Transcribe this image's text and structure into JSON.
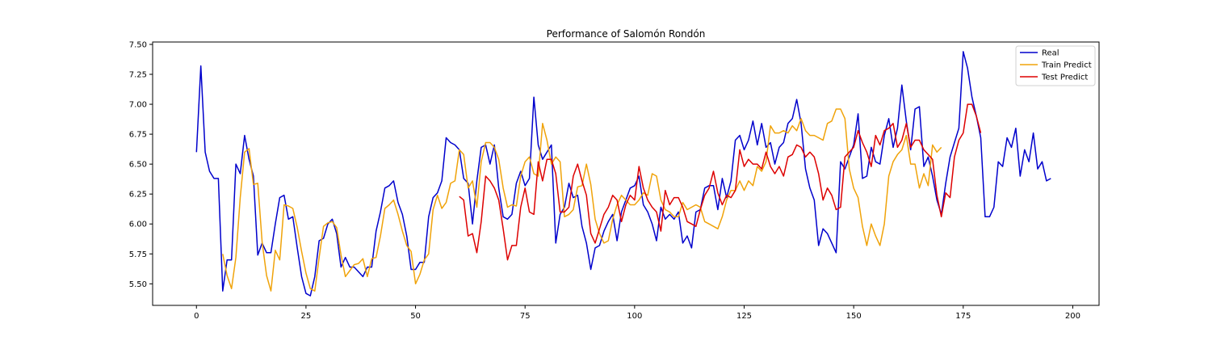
{
  "chart_data": {
    "type": "line",
    "title": "Performance of Salomón Rondón",
    "xlabel": "",
    "ylabel": "",
    "xlim": [
      -10,
      206
    ],
    "ylim": [
      5.32,
      7.52
    ],
    "xticks": [
      0,
      25,
      50,
      75,
      100,
      125,
      150,
      175,
      200
    ],
    "yticks": [
      5.5,
      5.75,
      6.0,
      6.25,
      6.5,
      6.75,
      7.0,
      7.25,
      7.5
    ],
    "ytick_labels": [
      "5.50",
      "5.75",
      "6.00",
      "6.25",
      "6.50",
      "6.75",
      "7.00",
      "7.25",
      "7.50"
    ],
    "grid": false,
    "legend_position": "top-right",
    "series": [
      {
        "name": "Real",
        "color": "#0000cc",
        "x_start": 0,
        "values": [
          6.6,
          7.32,
          6.6,
          6.44,
          6.38,
          6.38,
          5.44,
          5.7,
          5.7,
          6.5,
          6.42,
          6.74,
          6.54,
          6.4,
          5.74,
          5.84,
          5.76,
          5.76,
          6.0,
          6.22,
          6.24,
          6.04,
          6.06,
          5.8,
          5.56,
          5.42,
          5.4,
          5.56,
          5.86,
          5.88,
          6.0,
          6.04,
          5.92,
          5.64,
          5.72,
          5.64,
          5.64,
          5.6,
          5.56,
          5.64,
          5.64,
          5.94,
          6.1,
          6.3,
          6.32,
          6.36,
          6.18,
          6.08,
          5.9,
          5.62,
          5.62,
          5.68,
          5.68,
          6.06,
          6.22,
          6.26,
          6.36,
          6.72,
          6.68,
          6.66,
          6.62,
          6.38,
          6.34,
          6.0,
          6.36,
          6.64,
          6.66,
          6.5,
          6.66,
          6.3,
          6.06,
          6.04,
          6.08,
          6.34,
          6.44,
          6.32,
          6.38,
          7.06,
          6.66,
          6.54,
          6.6,
          6.66,
          5.84,
          6.08,
          6.14,
          6.34,
          6.22,
          6.24,
          5.98,
          5.84,
          5.62,
          5.8,
          5.82,
          5.94,
          6.02,
          6.08,
          5.86,
          6.1,
          6.2,
          6.3,
          6.32,
          6.4,
          6.16,
          6.1,
          6.0,
          5.86,
          6.14,
          6.04,
          6.08,
          6.04,
          6.1,
          5.84,
          5.9,
          5.8,
          6.1,
          6.12,
          6.3,
          6.32,
          6.32,
          6.12,
          6.38,
          6.22,
          6.36,
          6.7,
          6.74,
          6.62,
          6.7,
          6.86,
          6.66,
          6.84,
          6.64,
          6.68,
          6.5,
          6.64,
          6.68,
          6.84,
          6.88,
          7.04,
          6.84,
          6.46,
          6.3,
          6.2,
          5.82,
          5.96,
          5.92,
          5.84,
          5.76,
          6.52,
          6.46,
          6.56,
          6.66,
          6.92,
          6.38,
          6.4,
          6.64,
          6.52,
          6.5,
          6.74,
          6.88,
          6.64,
          6.8,
          7.16,
          6.86,
          6.62,
          6.96,
          6.98,
          6.48,
          6.56,
          6.4,
          6.2,
          6.08,
          6.34,
          6.56,
          6.68,
          6.8,
          7.44,
          7.3,
          7.06,
          6.9,
          6.72,
          6.06,
          6.06,
          6.14,
          6.52,
          6.48,
          6.72,
          6.64,
          6.8,
          6.4,
          6.62,
          6.52,
          6.76,
          6.46,
          6.52,
          6.36,
          6.38
        ]
      },
      {
        "name": "Train Predict",
        "color": "#f0a30a",
        "x_start": 6,
        "values": [
          5.75,
          5.57,
          5.46,
          5.72,
          6.22,
          6.6,
          6.63,
          6.33,
          6.34,
          5.85,
          5.57,
          5.44,
          5.78,
          5.7,
          6.16,
          6.15,
          6.13,
          5.97,
          5.77,
          5.59,
          5.46,
          5.44,
          5.72,
          5.98,
          6.01,
          6.02,
          5.97,
          5.74,
          5.56,
          5.61,
          5.66,
          5.67,
          5.71,
          5.56,
          5.71,
          5.72,
          5.9,
          6.13,
          6.16,
          6.2,
          6.08,
          5.94,
          5.82,
          5.77,
          5.5,
          5.58,
          5.7,
          5.75,
          6.12,
          6.24,
          6.13,
          6.18,
          6.34,
          6.36,
          6.62,
          6.58,
          6.3,
          6.36,
          6.14,
          6.52,
          6.68,
          6.68,
          6.64,
          6.54,
          6.3,
          6.14,
          6.16,
          6.15,
          6.4,
          6.52,
          6.56,
          6.42,
          6.4,
          6.84,
          6.7,
          6.5,
          6.56,
          6.52,
          6.06,
          6.08,
          6.12,
          6.31,
          6.32,
          6.5,
          6.33,
          6.04,
          5.92,
          5.84,
          5.86,
          6.04,
          6.16,
          6.24,
          6.2,
          6.16,
          6.16,
          6.2,
          6.26,
          6.24,
          6.42,
          6.4,
          6.2,
          6.12,
          6.1,
          6.06,
          6.06,
          6.18,
          6.12,
          6.14,
          6.16,
          6.14,
          6.02,
          6.0,
          5.98,
          5.96,
          6.06,
          6.2,
          6.28,
          6.28,
          6.36,
          6.28,
          6.36,
          6.32,
          6.48,
          6.44,
          6.52,
          6.82,
          6.76,
          6.76,
          6.78,
          6.76,
          6.82,
          6.78,
          6.88,
          6.78,
          6.74,
          6.74,
          6.72,
          6.7,
          6.84,
          6.86,
          6.96,
          6.96,
          6.88,
          6.46,
          6.3,
          6.22,
          5.98,
          5.82,
          6.0,
          5.9,
          5.82,
          6.0,
          6.4,
          6.52,
          6.58,
          6.62,
          6.74,
          6.5,
          6.5,
          6.3,
          6.42,
          6.32,
          6.66,
          6.6,
          6.64
        ]
      },
      {
        "name": "Test Predict",
        "color": "#dd0000",
        "x_start": 60,
        "values": [
          6.23,
          6.2,
          5.9,
          5.92,
          5.76,
          6.02,
          6.4,
          6.36,
          6.3,
          6.2,
          5.96,
          5.7,
          5.82,
          5.82,
          6.14,
          6.3,
          6.1,
          6.08,
          6.52,
          6.36,
          6.54,
          6.54,
          6.42,
          6.1,
          6.1,
          6.14,
          6.4,
          6.5,
          6.36,
          6.24,
          5.92,
          5.84,
          5.96,
          6.08,
          6.14,
          6.24,
          6.2,
          6.02,
          6.16,
          6.24,
          6.2,
          6.48,
          6.3,
          6.2,
          6.14,
          6.1,
          5.94,
          6.28,
          6.16,
          6.22,
          6.22,
          6.14,
          6.02,
          6.0,
          5.98,
          6.12,
          6.24,
          6.3,
          6.44,
          6.26,
          6.16,
          6.24,
          6.22,
          6.28,
          6.62,
          6.48,
          6.54,
          6.5,
          6.5,
          6.46,
          6.6,
          6.48,
          6.42,
          6.48,
          6.4,
          6.56,
          6.58,
          6.66,
          6.64,
          6.56,
          6.6,
          6.56,
          6.42,
          6.2,
          6.3,
          6.24,
          6.12,
          6.14,
          6.56,
          6.6,
          6.64,
          6.78,
          6.68,
          6.6,
          6.48,
          6.74,
          6.66,
          6.78,
          6.8,
          6.84,
          6.64,
          6.7,
          6.84,
          6.64,
          6.7,
          6.7,
          6.62,
          6.58,
          6.54,
          6.24,
          6.06,
          6.26,
          6.22,
          6.56,
          6.7,
          6.76,
          7.0,
          7.0,
          6.9,
          6.76
        ]
      }
    ]
  }
}
